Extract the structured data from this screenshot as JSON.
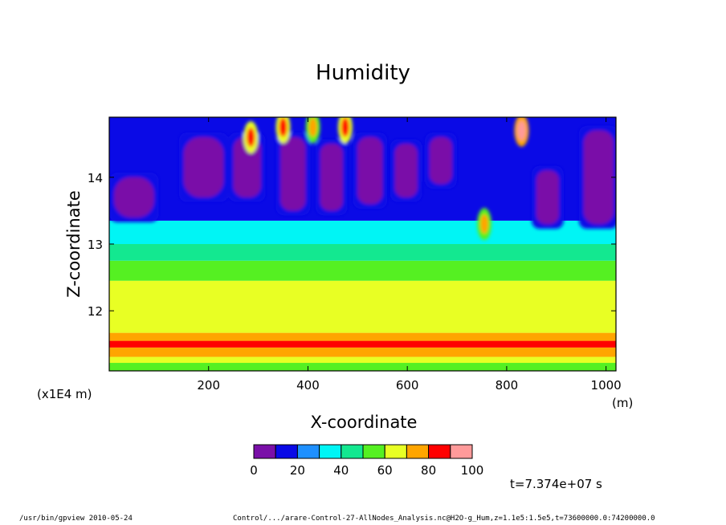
{
  "chart_data": {
    "type": "heatmap",
    "title": "Humidity",
    "xlabel": "X-coordinate",
    "ylabel": "Z-coordinate",
    "x_unit": "(m)",
    "y_unit": "(x1E4 m)",
    "xlim": [
      0,
      1020
    ],
    "ylim": [
      11.1,
      14.9
    ],
    "x_ticks": [
      200,
      400,
      600,
      800,
      1000
    ],
    "x_tick_labels": [
      "200",
      "400",
      "600",
      "800",
      "1000"
    ],
    "y_ticks": [
      12,
      13,
      14
    ],
    "y_tick_labels": [
      "12",
      "13",
      "14"
    ],
    "colorbar": {
      "levels": [
        0,
        10,
        20,
        30,
        40,
        50,
        60,
        70,
        80,
        90,
        100
      ],
      "labels": [
        "0",
        "20",
        "40",
        "60",
        "80",
        "100"
      ],
      "label_values": [
        0,
        20,
        40,
        60,
        80,
        100
      ],
      "colors": [
        "#7a0fa8",
        "#0a0ae6",
        "#1e90ff",
        "#00f5f5",
        "#13e890",
        "#55f022",
        "#e8ff24",
        "#ffa500",
        "#ff0000",
        "#ff9a9a"
      ]
    },
    "bands": [
      {
        "z": [
          11.1,
          11.22
        ],
        "value": 55
      },
      {
        "z": [
          11.22,
          11.31
        ],
        "value": 65
      },
      {
        "z": [
          11.31,
          11.45
        ],
        "value": 75
      },
      {
        "z": [
          11.45,
          11.55
        ],
        "value": 85
      },
      {
        "z": [
          11.55,
          11.67
        ],
        "value": 75
      },
      {
        "z": [
          11.67,
          12.45
        ],
        "value": 65
      },
      {
        "z": [
          12.45,
          12.75
        ],
        "value": 55
      },
      {
        "z": [
          12.75,
          13.0
        ],
        "value": 45
      },
      {
        "z": [
          13.0,
          13.35
        ],
        "value": 35
      },
      {
        "z": [
          13.35,
          14.9
        ],
        "value": 15
      }
    ],
    "dry_cells": [
      {
        "x": [
          10,
          90
        ],
        "z": [
          13.4,
          14.0
        ]
      },
      {
        "x": [
          150,
          230
        ],
        "z": [
          13.7,
          14.6
        ]
      },
      {
        "x": [
          250,
          305
        ],
        "z": [
          13.7,
          14.6
        ]
      },
      {
        "x": [
          345,
          395
        ],
        "z": [
          13.5,
          14.6
        ]
      },
      {
        "x": [
          425,
          470
        ],
        "z": [
          13.5,
          14.5
        ]
      },
      {
        "x": [
          500,
          550
        ],
        "z": [
          13.6,
          14.6
        ]
      },
      {
        "x": [
          575,
          620
        ],
        "z": [
          13.7,
          14.5
        ]
      },
      {
        "x": [
          645,
          690
        ],
        "z": [
          13.9,
          14.6
        ]
      },
      {
        "x": [
          860,
          905
        ],
        "z": [
          13.3,
          14.1
        ]
      },
      {
        "x": [
          955,
          1015
        ],
        "z": [
          13.3,
          14.7
        ]
      }
    ],
    "moist_plumes": [
      {
        "x": 285,
        "z": 14.6,
        "value": 85
      },
      {
        "x": 350,
        "z": 14.75,
        "value": 85
      },
      {
        "x": 410,
        "z": 14.75,
        "value": 75
      },
      {
        "x": 475,
        "z": 14.75,
        "value": 85
      },
      {
        "x": 830,
        "z": 14.7,
        "value": 95
      },
      {
        "x": 755,
        "z": 13.3,
        "value": 75
      }
    ],
    "time_annotation": "t=7.374e+07 s"
  },
  "footer": {
    "program": "/usr/bin/gpview   2010-05-24",
    "source": "Control/.../arare-Control-27-AllNodes_Analysis.nc@H2O-g_Hum,z=1.1e5:1.5e5,t=73600000.0:74200000.0"
  }
}
